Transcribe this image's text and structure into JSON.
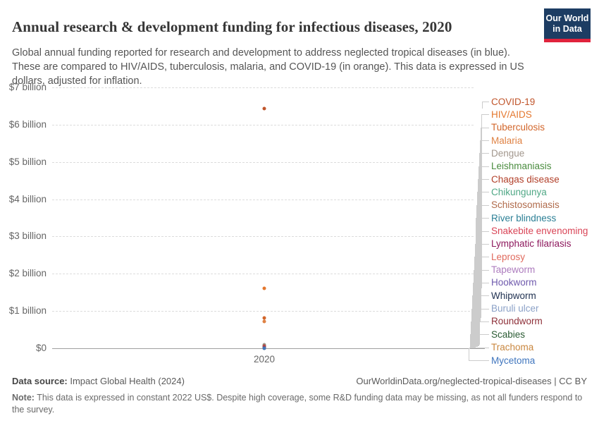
{
  "header": {
    "title": "Annual research & development funding for infectious diseases, 2020",
    "subtitle": "Global annual funding reported for research and development to address neglected tropical diseases (in blue). These are compared to HIV/AIDS, tuberculosis, malaria, and COVID-19 (in orange). This data is expressed in US dollars, adjusted for inflation.",
    "logo": {
      "line1": "Our World",
      "line2": "in Data",
      "bg_color": "#1d3d63",
      "bar_color": "#e0233c"
    }
  },
  "chart_data": {
    "type": "scatter",
    "title": "Annual research & development funding for infectious diseases, 2020",
    "x": [
      2020
    ],
    "x_tick_label": "2020",
    "ylim": [
      0,
      7
    ],
    "grid": "dashed-horizontal",
    "legend_position": "right",
    "y_ticks": [
      {
        "label": "$7 billion",
        "value": 7
      },
      {
        "label": "$6 billion",
        "value": 6
      },
      {
        "label": "$5 billion",
        "value": 5
      },
      {
        "label": "$4 billion",
        "value": 4
      },
      {
        "label": "$3 billion",
        "value": 3
      },
      {
        "label": "$2 billion",
        "value": 2
      },
      {
        "label": "$1 billion",
        "value": 1
      },
      {
        "label": "$0",
        "value": 0
      }
    ],
    "value_unit": "US$ billion",
    "series": [
      {
        "name": "COVID-19",
        "value": 6.43,
        "color": "#c0552b",
        "group": "comparison"
      },
      {
        "name": "HIV/AIDS",
        "value": 1.61,
        "color": "#e4772e",
        "group": "comparison"
      },
      {
        "name": "Tuberculosis",
        "value": 0.82,
        "color": "#d2652a",
        "group": "comparison"
      },
      {
        "name": "Malaria",
        "value": 0.72,
        "color": "#df8244",
        "group": "comparison"
      },
      {
        "name": "Dengue",
        "value": 0.09,
        "color": "#a2978d",
        "group": "ntd"
      },
      {
        "name": "Leishmaniasis",
        "value": 0.06,
        "color": "#4a8c3f",
        "group": "ntd"
      },
      {
        "name": "Chagas disease",
        "value": 0.05,
        "color": "#b2402a",
        "group": "ntd"
      },
      {
        "name": "Chikungunya",
        "value": 0.045,
        "color": "#50a886",
        "group": "ntd"
      },
      {
        "name": "Schistosomiasis",
        "value": 0.04,
        "color": "#b06b4b",
        "group": "ntd"
      },
      {
        "name": "River blindness",
        "value": 0.035,
        "color": "#2b7f95",
        "group": "ntd"
      },
      {
        "name": "Snakebite envenoming",
        "value": 0.03,
        "color": "#d94456",
        "group": "ntd"
      },
      {
        "name": "Lymphatic filariasis",
        "value": 0.025,
        "color": "#8e1a5e",
        "group": "ntd"
      },
      {
        "name": "Leprosy",
        "value": 0.02,
        "color": "#e06a5d",
        "group": "ntd"
      },
      {
        "name": "Tapeworm",
        "value": 0.02,
        "color": "#ad7cbe",
        "group": "ntd"
      },
      {
        "name": "Hookworm",
        "value": 0.015,
        "color": "#6f5aad",
        "group": "ntd"
      },
      {
        "name": "Whipworm",
        "value": 0.015,
        "color": "#1f3050",
        "group": "ntd"
      },
      {
        "name": "Buruli ulcer",
        "value": 0.01,
        "color": "#8ba1c7",
        "group": "ntd"
      },
      {
        "name": "Roundworm",
        "value": 0.01,
        "color": "#8e3039",
        "group": "ntd"
      },
      {
        "name": "Scabies",
        "value": 0.005,
        "color": "#2a5b33",
        "group": "ntd"
      },
      {
        "name": "Trachoma",
        "value": 0.005,
        "color": "#c9873f",
        "group": "ntd"
      },
      {
        "name": "Mycetoma",
        "value": 0.002,
        "color": "#4076be",
        "group": "ntd"
      }
    ]
  },
  "footer": {
    "source_label": "Data source:",
    "source_text": " Impact Global Health (2024)",
    "link_text": "OurWorldinData.org/neglected-tropical-diseases",
    "license_text": "CC BY",
    "separator": " | ",
    "note_label": "Note:",
    "note_text": " This data is expressed in constant 2022 US$. Despite high coverage, some R&D funding data may be missing, as not all funders respond to the survey."
  }
}
